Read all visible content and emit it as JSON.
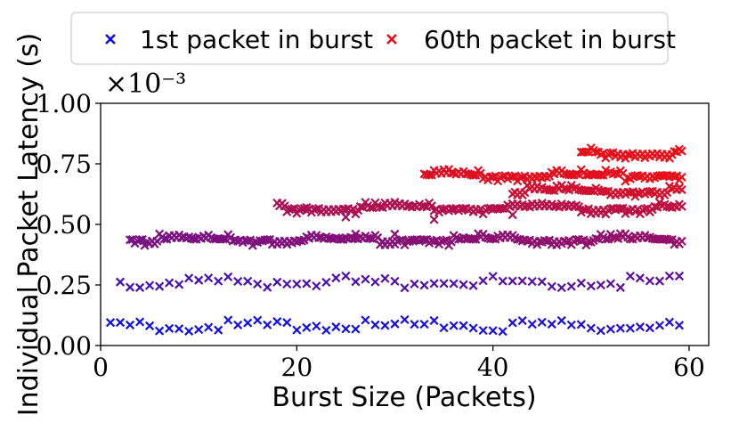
{
  "chart_data": {
    "type": "scatter",
    "title": "",
    "xlabel": "Burst Size (Packets)",
    "ylabel": "Individual Packet Latency (s)",
    "y_scale_label": "×10⁻³",
    "xlim": [
      0,
      62
    ],
    "ylim": [
      0.0,
      1.0
    ],
    "x_ticks": [
      "0",
      "20",
      "40",
      "60"
    ],
    "y_ticks": [
      "0.00",
      "0.25",
      "0.50",
      "0.75",
      "1.00"
    ],
    "grid": false,
    "legend": {
      "placement": "top-center",
      "outside": true
    },
    "marker": "x",
    "color_start": "#1010e6",
    "color_end": "#e6101a",
    "series": [
      {
        "name": "1st packet in burst",
        "color": "#1010e6"
      },
      {
        "name": "60th packet in burst",
        "color": "#e6101a"
      }
    ],
    "latency_levels_ms": [
      {
        "y": 0.095,
        "x_range": [
          1,
          59
        ]
      },
      {
        "y": 0.275,
        "x_range": [
          2,
          59
        ]
      },
      {
        "y": 0.45,
        "x_range": [
          3,
          59
        ]
      },
      {
        "y": 0.58,
        "x_range": [
          18,
          59
        ]
      },
      {
        "y": 0.715,
        "x_range": [
          33,
          59
        ]
      },
      {
        "y": 0.65,
        "x_range": [
          42,
          59
        ]
      },
      {
        "y": 0.81,
        "x_range": [
          49,
          59
        ]
      }
    ],
    "outliers_ms": [
      {
        "x": 21,
        "y": 0.57
      },
      {
        "x": 25,
        "y": 0.53
      },
      {
        "x": 34,
        "y": 0.52
      },
      {
        "x": 42,
        "y": 0.54
      },
      {
        "x": 30,
        "y": 0.46
      },
      {
        "x": 26,
        "y": 0.46
      }
    ]
  }
}
